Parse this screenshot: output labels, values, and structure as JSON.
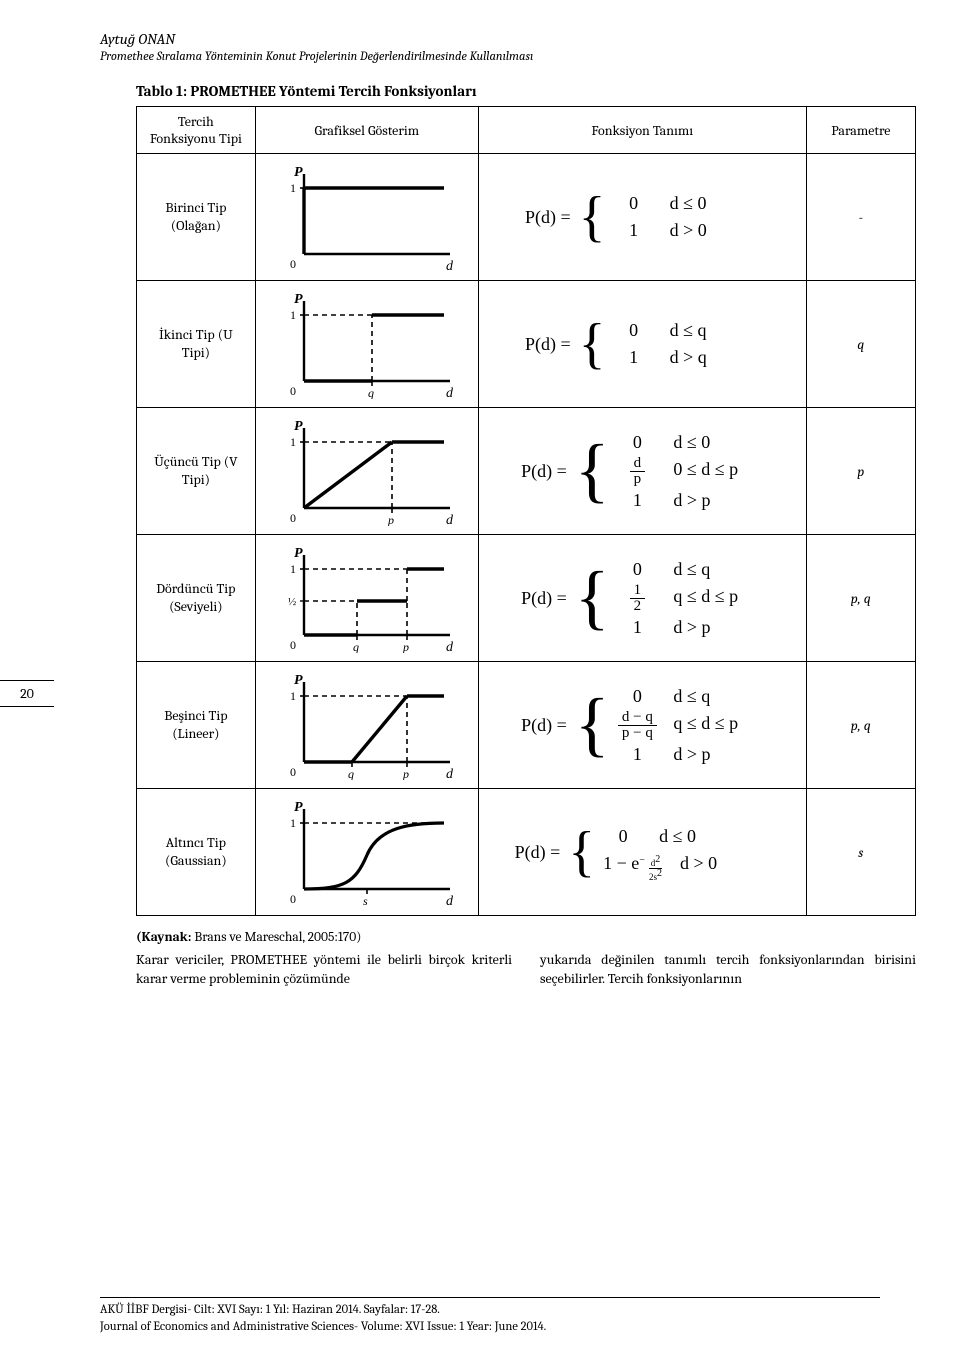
{
  "header": {
    "author": "Aytuğ ONAN",
    "subtitle": "Promethee Sıralama Yönteminin Konut Projelerinin Değerlendirilmesinde Kullanılması"
  },
  "table": {
    "title": "Tablo 1: PROMETHEE Yöntemi Tercih Fonksiyonları",
    "head": {
      "type": "Tercih Fonksiyonu Tipi",
      "graph": "Grafiksel Gösterim",
      "func": "Fonksiyon Tanımı",
      "param": "Parametre"
    },
    "rows": [
      {
        "type_label": "Birinci Tip (Olağan)",
        "param": "-",
        "kind": "usual",
        "graph": {
          "xticks": [],
          "half": false
        }
      },
      {
        "type_label": "İkinci Tip (U Tipi)",
        "param": "q",
        "kind": "u",
        "graph": {
          "xticks": [
            "q"
          ],
          "half": false
        }
      },
      {
        "type_label": "Üçüncü Tip (V Tipi)",
        "param": "p",
        "kind": "v",
        "graph": {
          "xticks": [
            "p"
          ],
          "half": false
        }
      },
      {
        "type_label": "Dördüncü Tip (Seviyeli)",
        "param": "p, q",
        "kind": "level",
        "graph": {
          "xticks": [
            "q",
            "p"
          ],
          "half": true
        }
      },
      {
        "type_label": "Beşinci Tip (Lineer)",
        "param": "p, q",
        "kind": "linear",
        "graph": {
          "xticks": [
            "q",
            "p"
          ],
          "half": false
        }
      },
      {
        "type_label": "Altıncı Tip (Gaussian)",
        "param": "s",
        "kind": "gauss",
        "graph": {
          "xticks": [
            "s"
          ],
          "half": false
        }
      }
    ]
  },
  "source": {
    "label": "(Kaynak:",
    "text": " Brans ve Mareschal, 2005:170)"
  },
  "para_left": "Karar vericiler, PROMETHEE yöntemi ile belirli birçok kriterli karar verme probleminin çözümünde",
  "para_right": "yukarıda değinilen tanımlı tercih fonksiyonlarından birisini seçebilirler. Tercih fonksiyonlarının",
  "side_page": "20",
  "footer": {
    "line1": "AKÜ İİBF Dergisi- Cilt: XVI Sayı: 1 Yıl: Haziran 2014. Sayfalar: 17-28.",
    "line2": "Journal of Economics and Administrative Sciences- Volume: XVI Issue: 1 Year: June 2014."
  },
  "labels": {
    "P": "P",
    "d_axis": "d",
    "one": "1",
    "zero": "0",
    "half_tick": "½",
    "q": "q",
    "p": "p",
    "s": "s"
  }
}
